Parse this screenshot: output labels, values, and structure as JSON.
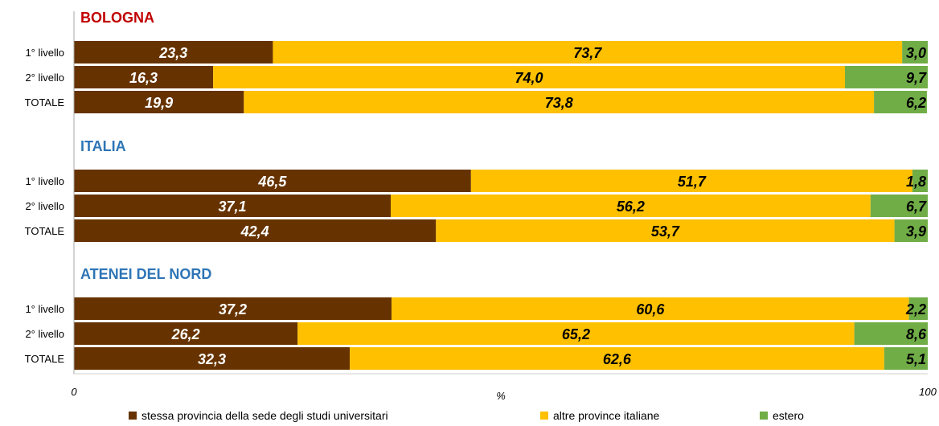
{
  "chart_data": {
    "type": "bar",
    "orientation": "horizontal",
    "stacked": true,
    "xlabel": "%",
    "xlim": [
      0,
      100
    ],
    "x_ticks": [
      "0",
      "100"
    ],
    "grid": false,
    "legend_position": "bottom",
    "series": [
      {
        "name": "stessa provincia della sede degli studi universitari",
        "color": "#663300"
      },
      {
        "name": "altre province italiane",
        "color": "#FFC000"
      },
      {
        "name": "estero",
        "color": "#70AD47"
      }
    ],
    "groups": [
      {
        "title": "BOLOGNA",
        "title_color": "#C00000",
        "rows": [
          {
            "label": "1° livello",
            "values": [
              23.3,
              73.7,
              3.0
            ],
            "labels": [
              "23,3",
              "73,7",
              "3,0"
            ]
          },
          {
            "label": "2° livello",
            "values": [
              16.3,
              74.0,
              9.7
            ],
            "labels": [
              "16,3",
              "74,0",
              "9,7"
            ]
          },
          {
            "label": "TOTALE",
            "values": [
              19.9,
              73.8,
              6.2
            ],
            "labels": [
              "19,9",
              "73,8",
              "6,2"
            ]
          }
        ]
      },
      {
        "title": "ITALIA",
        "title_color": "#2E75B6",
        "rows": [
          {
            "label": "1° livello",
            "values": [
              46.5,
              51.7,
              1.8
            ],
            "labels": [
              "46,5",
              "51,7",
              "1,8"
            ]
          },
          {
            "label": "2° livello",
            "values": [
              37.1,
              56.2,
              6.7
            ],
            "labels": [
              "37,1",
              "56,2",
              "6,7"
            ]
          },
          {
            "label": "TOTALE",
            "values": [
              42.4,
              53.7,
              3.9
            ],
            "labels": [
              "42,4",
              "53,7",
              "3,9"
            ]
          }
        ]
      },
      {
        "title": "ATENEI DEL NORD",
        "title_color": "#2E75B6",
        "rows": [
          {
            "label": "1° livello",
            "values": [
              37.2,
              60.6,
              2.2
            ],
            "labels": [
              "37,2",
              "60,6",
              "2,2"
            ]
          },
          {
            "label": "2° livello",
            "values": [
              26.2,
              65.2,
              8.6
            ],
            "labels": [
              "26,2",
              "65,2",
              "8,6"
            ]
          },
          {
            "label": "TOTALE",
            "values": [
              32.3,
              62.6,
              5.1
            ],
            "labels": [
              "32,3",
              "62,6",
              "5,1"
            ]
          }
        ]
      }
    ]
  }
}
